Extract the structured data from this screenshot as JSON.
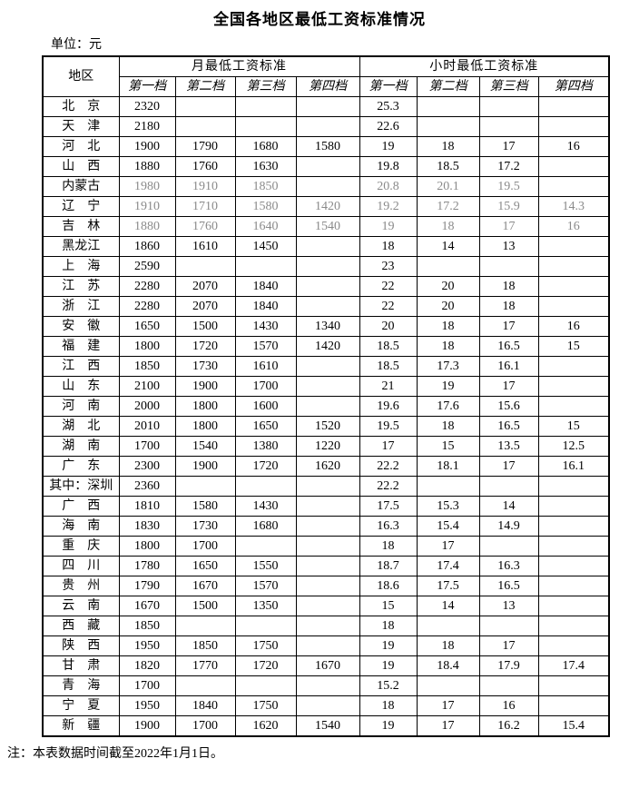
{
  "title": "全国各地区最低工资标准情况",
  "unit_label": "单位：元",
  "note": "注：本表数据时间截至2022年1月1日。",
  "colors": {
    "text": "#000000",
    "muted_numbers": "#8a8a8a",
    "border": "#000000",
    "background": "#ffffff"
  },
  "table": {
    "region_header": "地区",
    "monthly_header": "月最低工资标准",
    "hourly_header": "小时最低工资标准",
    "tier_headers": [
      "第一档",
      "第二档",
      "第三档",
      "第四档"
    ],
    "rows": [
      {
        "region": "北　京",
        "monthly": [
          "2320",
          "",
          "",
          ""
        ],
        "hourly": [
          "25.3",
          "",
          "",
          ""
        ],
        "muted": false
      },
      {
        "region": "天　津",
        "monthly": [
          "2180",
          "",
          "",
          ""
        ],
        "hourly": [
          "22.6",
          "",
          "",
          ""
        ],
        "muted": false
      },
      {
        "region": "河　北",
        "monthly": [
          "1900",
          "1790",
          "1680",
          "1580"
        ],
        "hourly": [
          "19",
          "18",
          "17",
          "16"
        ],
        "muted": false
      },
      {
        "region": "山　西",
        "monthly": [
          "1880",
          "1760",
          "1630",
          ""
        ],
        "hourly": [
          "19.8",
          "18.5",
          "17.2",
          ""
        ],
        "muted": false
      },
      {
        "region": "内蒙古",
        "monthly": [
          "1980",
          "1910",
          "1850",
          ""
        ],
        "hourly": [
          "20.8",
          "20.1",
          "19.5",
          ""
        ],
        "muted": true
      },
      {
        "region": "辽　宁",
        "monthly": [
          "1910",
          "1710",
          "1580",
          "1420"
        ],
        "hourly": [
          "19.2",
          "17.2",
          "15.9",
          "14.3"
        ],
        "muted": true
      },
      {
        "region": "吉　林",
        "monthly": [
          "1880",
          "1760",
          "1640",
          "1540"
        ],
        "hourly": [
          "19",
          "18",
          "17",
          "16"
        ],
        "muted": true
      },
      {
        "region": "黑龙江",
        "monthly": [
          "1860",
          "1610",
          "1450",
          ""
        ],
        "hourly": [
          "18",
          "14",
          "13",
          ""
        ],
        "muted": false
      },
      {
        "region": "上　海",
        "monthly": [
          "2590",
          "",
          "",
          ""
        ],
        "hourly": [
          "23",
          "",
          "",
          ""
        ],
        "muted": false
      },
      {
        "region": "江　苏",
        "monthly": [
          "2280",
          "2070",
          "1840",
          ""
        ],
        "hourly": [
          "22",
          "20",
          "18",
          ""
        ],
        "muted": false
      },
      {
        "region": "浙　江",
        "monthly": [
          "2280",
          "2070",
          "1840",
          ""
        ],
        "hourly": [
          "22",
          "20",
          "18",
          ""
        ],
        "muted": false
      },
      {
        "region": "安　徽",
        "monthly": [
          "1650",
          "1500",
          "1430",
          "1340"
        ],
        "hourly": [
          "20",
          "18",
          "17",
          "16"
        ],
        "muted": false
      },
      {
        "region": "福　建",
        "monthly": [
          "1800",
          "1720",
          "1570",
          "1420"
        ],
        "hourly": [
          "18.5",
          "18",
          "16.5",
          "15"
        ],
        "muted": false
      },
      {
        "region": "江　西",
        "monthly": [
          "1850",
          "1730",
          "1610",
          ""
        ],
        "hourly": [
          "18.5",
          "17.3",
          "16.1",
          ""
        ],
        "muted": false
      },
      {
        "region": "山　东",
        "monthly": [
          "2100",
          "1900",
          "1700",
          ""
        ],
        "hourly": [
          "21",
          "19",
          "17",
          ""
        ],
        "muted": false
      },
      {
        "region": "河　南",
        "monthly": [
          "2000",
          "1800",
          "1600",
          ""
        ],
        "hourly": [
          "19.6",
          "17.6",
          "15.6",
          ""
        ],
        "muted": false
      },
      {
        "region": "湖　北",
        "monthly": [
          "2010",
          "1800",
          "1650",
          "1520"
        ],
        "hourly": [
          "19.5",
          "18",
          "16.5",
          "15"
        ],
        "muted": false
      },
      {
        "region": "湖　南",
        "monthly": [
          "1700",
          "1540",
          "1380",
          "1220"
        ],
        "hourly": [
          "17",
          "15",
          "13.5",
          "12.5"
        ],
        "muted": false
      },
      {
        "region": "广　东",
        "monthly": [
          "2300",
          "1900",
          "1720",
          "1620"
        ],
        "hourly": [
          "22.2",
          "18.1",
          "17",
          "16.1"
        ],
        "muted": false
      },
      {
        "region": "其中：深圳",
        "monthly": [
          "2360",
          "",
          "",
          ""
        ],
        "hourly": [
          "22.2",
          "",
          "",
          ""
        ],
        "muted": false
      },
      {
        "region": "广　西",
        "monthly": [
          "1810",
          "1580",
          "1430",
          ""
        ],
        "hourly": [
          "17.5",
          "15.3",
          "14",
          ""
        ],
        "muted": false
      },
      {
        "region": "海　南",
        "monthly": [
          "1830",
          "1730",
          "1680",
          ""
        ],
        "hourly": [
          "16.3",
          "15.4",
          "14.9",
          ""
        ],
        "muted": false
      },
      {
        "region": "重　庆",
        "monthly": [
          "1800",
          "1700",
          "",
          ""
        ],
        "hourly": [
          "18",
          "17",
          "",
          ""
        ],
        "muted": false
      },
      {
        "region": "四　川",
        "monthly": [
          "1780",
          "1650",
          "1550",
          ""
        ],
        "hourly": [
          "18.7",
          "17.4",
          "16.3",
          ""
        ],
        "muted": false
      },
      {
        "region": "贵　州",
        "monthly": [
          "1790",
          "1670",
          "1570",
          ""
        ],
        "hourly": [
          "18.6",
          "17.5",
          "16.5",
          ""
        ],
        "muted": false
      },
      {
        "region": "云　南",
        "monthly": [
          "1670",
          "1500",
          "1350",
          ""
        ],
        "hourly": [
          "15",
          "14",
          "13",
          ""
        ],
        "muted": false
      },
      {
        "region": "西　藏",
        "monthly": [
          "1850",
          "",
          "",
          ""
        ],
        "hourly": [
          "18",
          "",
          "",
          ""
        ],
        "muted": false
      },
      {
        "region": "陕　西",
        "monthly": [
          "1950",
          "1850",
          "1750",
          ""
        ],
        "hourly": [
          "19",
          "18",
          "17",
          ""
        ],
        "muted": false
      },
      {
        "region": "甘　肃",
        "monthly": [
          "1820",
          "1770",
          "1720",
          "1670"
        ],
        "hourly": [
          "19",
          "18.4",
          "17.9",
          "17.4"
        ],
        "muted": false
      },
      {
        "region": "青　海",
        "monthly": [
          "1700",
          "",
          "",
          ""
        ],
        "hourly": [
          "15.2",
          "",
          "",
          ""
        ],
        "muted": false
      },
      {
        "region": "宁　夏",
        "monthly": [
          "1950",
          "1840",
          "1750",
          ""
        ],
        "hourly": [
          "18",
          "17",
          "16",
          ""
        ],
        "muted": false
      },
      {
        "region": "新　疆",
        "monthly": [
          "1900",
          "1700",
          "1620",
          "1540"
        ],
        "hourly": [
          "19",
          "17",
          "16.2",
          "15.4"
        ],
        "muted": false
      }
    ]
  }
}
